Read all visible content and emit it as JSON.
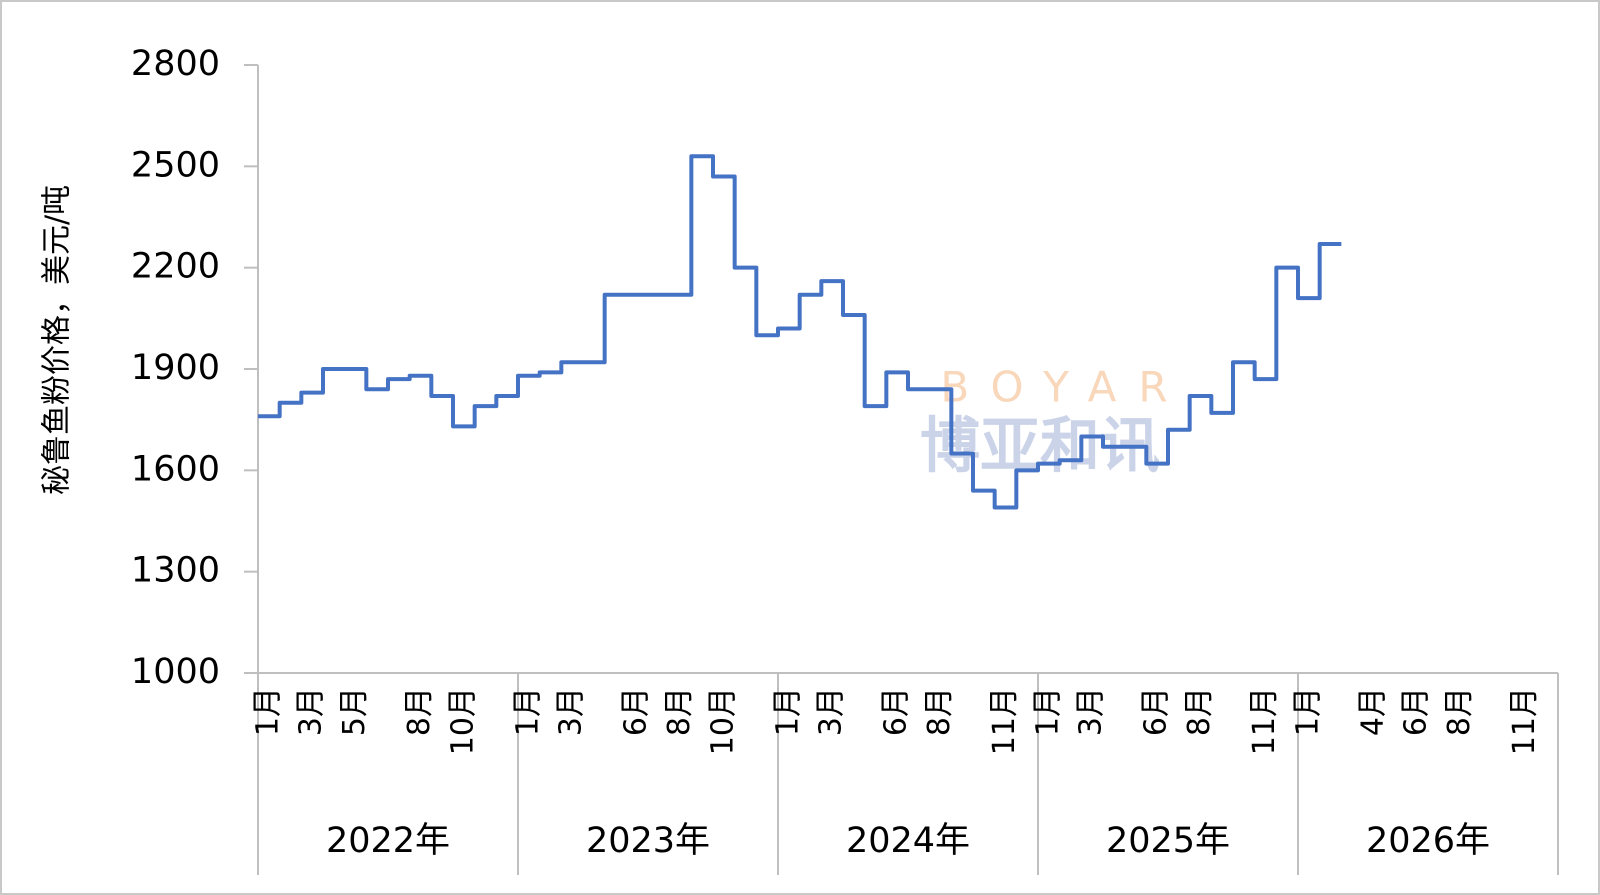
{
  "chart_data": {
    "type": "line",
    "y_label": "秘鲁鱼粉价格，美元/吨",
    "watermark": {
      "latin": "BOYAR",
      "chinese": "博亚和讯"
    },
    "years": [
      "2022年",
      "2023年",
      "2024年",
      "2025年",
      "2026年"
    ],
    "categories": [
      "1月",
      null,
      "3月",
      null,
      "5月",
      null,
      null,
      "8月",
      null,
      "10月",
      null,
      null,
      "1月",
      null,
      "3月",
      null,
      null,
      "6月",
      null,
      "8月",
      null,
      "10月",
      null,
      null,
      "1月",
      null,
      "3月",
      null,
      null,
      "6月",
      null,
      "8月",
      null,
      null,
      "11月",
      null,
      "1月",
      null,
      "3月",
      null,
      null,
      "6月",
      null,
      "8月",
      null,
      null,
      "11月",
      null,
      "1月",
      null,
      null,
      "4月",
      null,
      "6月",
      null,
      "8月",
      null,
      null,
      "11月",
      null
    ],
    "series": [
      {
        "name": "秘鲁鱼粉价格",
        "color": "#4472c4",
        "values": [
          1760,
          1800,
          1830,
          1900,
          1900,
          1840,
          1870,
          1880,
          1820,
          1730,
          1790,
          1820,
          1880,
          1890,
          1920,
          1920,
          2120,
          2120,
          2120,
          2120,
          2530,
          2470,
          2200,
          2000,
          2020,
          2120,
          2160,
          2060,
          1790,
          1890,
          1840,
          1840,
          1650,
          1540,
          1490,
          1600,
          1620,
          1630,
          1700,
          1670,
          1670,
          1620,
          1720,
          1820,
          1770,
          1920,
          1870,
          2200,
          2110,
          2270,
          null,
          null,
          null,
          null,
          null,
          null,
          null,
          null,
          null,
          null
        ]
      }
    ],
    "step": true,
    "ylim": [
      1000,
      2800
    ],
    "yticks": [
      1000,
      1300,
      1600,
      1900,
      2200,
      2500,
      2800
    ],
    "grid": false
  }
}
